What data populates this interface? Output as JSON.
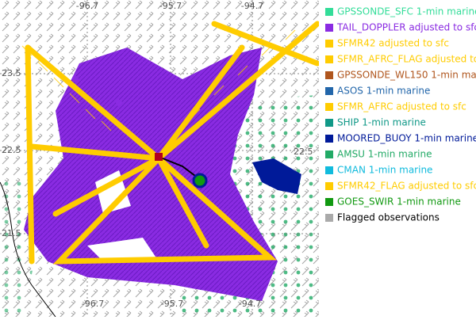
{
  "map": {
    "lon_labels_top": [
      "-96.7",
      "-95.7",
      "-94.7"
    ],
    "lat_labels_left": [
      "23.5",
      "22.5",
      "21.5"
    ],
    "lat_labels_right": [
      "22.5"
    ],
    "lon_labels_bottom": [
      "-96.7",
      "-95.7",
      "-94.7"
    ]
  },
  "legend": {
    "items": [
      {
        "label": "GPSSONDE_SFC 1-min marine",
        "color": "#33dd99"
      },
      {
        "label": "TAIL_DOPPLER adjusted to sfc",
        "color": "#8a2be2"
      },
      {
        "label": "SFMR42 adjusted to sfc",
        "color": "#ffcc00"
      },
      {
        "label": "SFMR_AFRC_FLAG adjusted to",
        "color": "#ffcc00"
      },
      {
        "label": "GPSSONDE_WL150 1-min marine",
        "color": "#b0561e"
      },
      {
        "label": "ASOS 1-min marine",
        "color": "#2266aa"
      },
      {
        "label": "SFMR_AFRC adjusted to sfc",
        "color": "#ffcc00"
      },
      {
        "label": "SHIP 1-min marine",
        "color": "#119988"
      },
      {
        "label": "MOORED_BUOY 1-min marine",
        "color": "#001a99"
      },
      {
        "label": "AMSU 1-min marine",
        "color": "#22aa66"
      },
      {
        "label": "CMAN 1-min marine",
        "color": "#11bbdd"
      },
      {
        "label": "SFMR42_FLAG adjusted to sfc",
        "color": "#ffcc00"
      },
      {
        "label": "GOES_SWIR 1-min marine",
        "color": "#119911"
      },
      {
        "label": "Flagged observations",
        "color": "#aaaaaa"
      }
    ]
  }
}
